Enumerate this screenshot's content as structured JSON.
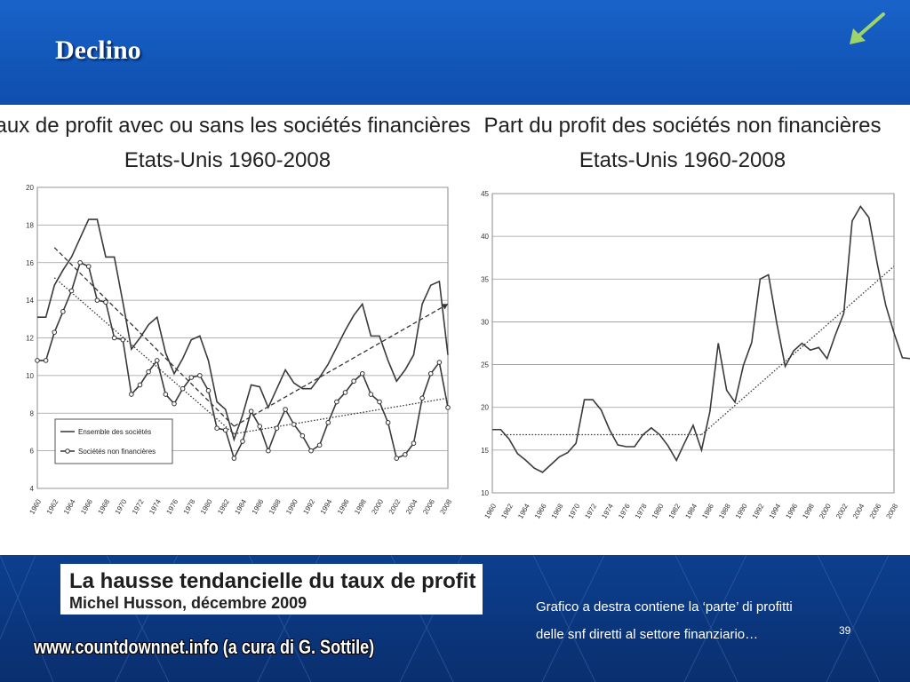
{
  "slide": {
    "title": "Declino",
    "nav_icon": "back-arrow-icon",
    "accent_color": "#9fd46a"
  },
  "citation": {
    "title": "La hausse tendancielle du taux de profit",
    "author": "Michel Husson, décembre 2009"
  },
  "note": {
    "line1": "Grafico a destra contiene la ‘parte’ di profitti",
    "line2": "delle snf diretti al settore finanziario…"
  },
  "slide_number": "39",
  "website": "www.countdownnet.info (a cura di G. Sottile)",
  "chart_data": [
    {
      "type": "line",
      "title": "Taux de profit avec ou sans les sociétés financières",
      "subtitle": "Etats-Unis 1960-2008",
      "ylim": [
        4,
        20
      ],
      "yticks": [
        "4",
        "6",
        "8",
        "10",
        "12",
        "14",
        "16",
        "18",
        "20"
      ],
      "xticks": [
        "1960",
        "1962",
        "1964",
        "1966",
        "1968",
        "1970",
        "1972",
        "1974",
        "1976",
        "1978",
        "1980",
        "1982",
        "1984",
        "1986",
        "1988",
        "1990",
        "1992",
        "1994",
        "1996",
        "1998",
        "2000",
        "2002",
        "2004",
        "2006",
        "2008"
      ],
      "legend": [
        "Ensemble des sociétés",
        "Sociétés non financières"
      ],
      "series": [
        {
          "name": "Ensemble des sociétés",
          "marker": "none",
          "values": [
            [
              1960,
              13.1
            ],
            [
              1961,
              13.1
            ],
            [
              1962,
              14.8
            ],
            [
              1963,
              15.6
            ],
            [
              1964,
              16.3
            ],
            [
              1965,
              17.3
            ],
            [
              1966,
              18.3
            ],
            [
              1967,
              18.3
            ],
            [
              1968,
              16.3
            ],
            [
              1969,
              16.3
            ],
            [
              1970,
              13.9
            ],
            [
              1971,
              11.4
            ],
            [
              1972,
              12.0
            ],
            [
              1973,
              12.7
            ],
            [
              1974,
              13.1
            ],
            [
              1975,
              11.2
            ],
            [
              1976,
              10.1
            ],
            [
              1977,
              10.9
            ],
            [
              1978,
              11.9
            ],
            [
              1979,
              12.1
            ],
            [
              1980,
              10.8
            ],
            [
              1981,
              8.6
            ],
            [
              1982,
              8.2
            ],
            [
              1983,
              6.6
            ],
            [
              1984,
              7.9
            ],
            [
              1985,
              9.5
            ],
            [
              1986,
              9.4
            ],
            [
              1987,
              8.3
            ],
            [
              1988,
              9.3
            ],
            [
              1989,
              10.3
            ],
            [
              1990,
              9.6
            ],
            [
              1991,
              9.3
            ],
            [
              1992,
              9.3
            ],
            [
              1993,
              9.9
            ],
            [
              1994,
              10.6
            ],
            [
              1995,
              11.5
            ],
            [
              1996,
              12.4
            ],
            [
              1997,
              13.2
            ],
            [
              1998,
              13.8
            ],
            [
              1999,
              12.1
            ],
            [
              2000,
              12.1
            ],
            [
              2001,
              10.8
            ],
            [
              2002,
              9.7
            ],
            [
              2003,
              10.3
            ],
            [
              2004,
              11.1
            ],
            [
              2005,
              13.8
            ],
            [
              2006,
              14.8
            ],
            [
              2007,
              15.0
            ],
            [
              2008,
              11.1
            ]
          ]
        },
        {
          "name": "Sociétés non financières",
          "marker": "circle",
          "values": [
            [
              1960,
              10.8
            ],
            [
              1961,
              10.8
            ],
            [
              1962,
              12.3
            ],
            [
              1963,
              13.4
            ],
            [
              1964,
              14.5
            ],
            [
              1965,
              16.0
            ],
            [
              1966,
              15.8
            ],
            [
              1967,
              14.0
            ],
            [
              1968,
              13.9
            ],
            [
              1969,
              12.0
            ],
            [
              1970,
              11.9
            ],
            [
              1971,
              9.0
            ],
            [
              1972,
              9.5
            ],
            [
              1973,
              10.2
            ],
            [
              1974,
              10.8
            ],
            [
              1975,
              9.0
            ],
            [
              1976,
              8.5
            ],
            [
              1977,
              9.3
            ],
            [
              1978,
              9.9
            ],
            [
              1979,
              10.0
            ],
            [
              1980,
              9.2
            ],
            [
              1981,
              7.2
            ],
            [
              1982,
              7.1
            ],
            [
              1983,
              5.6
            ],
            [
              1984,
              6.5
            ],
            [
              1985,
              8.1
            ],
            [
              1986,
              7.3
            ],
            [
              1987,
              6.0
            ],
            [
              1988,
              7.2
            ],
            [
              1989,
              8.2
            ],
            [
              1990,
              7.4
            ],
            [
              1991,
              6.8
            ],
            [
              1992,
              6.0
            ],
            [
              1993,
              6.3
            ],
            [
              1994,
              7.5
            ],
            [
              1995,
              8.6
            ],
            [
              1996,
              9.1
            ],
            [
              1997,
              9.7
            ],
            [
              1998,
              10.1
            ],
            [
              1999,
              9.0
            ],
            [
              2000,
              8.6
            ],
            [
              2001,
              7.5
            ],
            [
              2002,
              5.6
            ],
            [
              2003,
              5.8
            ],
            [
              2004,
              6.4
            ],
            [
              2005,
              8.8
            ],
            [
              2006,
              10.1
            ],
            [
              2007,
              10.7
            ],
            [
              2008,
              8.3
            ]
          ]
        }
      ],
      "trendlines": [
        {
          "style": "dashed",
          "points": [
            [
              1962,
              16.8
            ],
            [
              1983,
              7.3
            ]
          ]
        },
        {
          "style": "dashed-arrow",
          "points": [
            [
              1983,
              7.3
            ],
            [
              2008,
              13.8
            ]
          ]
        },
        {
          "style": "dotted",
          "points": [
            [
              1962,
              15.2
            ],
            [
              1983,
              6.9
            ]
          ]
        },
        {
          "style": "dotted",
          "points": [
            [
              1983,
              6.9
            ],
            [
              2008,
              8.8
            ]
          ]
        }
      ]
    },
    {
      "type": "line",
      "title": "Part du profit des sociétés non financières",
      "subtitle": "Etats-Unis 1960-2008",
      "ylim": [
        10,
        45
      ],
      "yticks": [
        "10",
        "15",
        "20",
        "25",
        "30",
        "35",
        "40",
        "45"
      ],
      "xticks": [
        "1960",
        "1962",
        "1964",
        "1966",
        "1968",
        "1970",
        "1972",
        "1974",
        "1976",
        "1978",
        "1980",
        "1982",
        "1984",
        "1986",
        "1988",
        "1990",
        "1992",
        "1994",
        "1996",
        "1998",
        "2000",
        "2002",
        "2004",
        "2006",
        "2008"
      ],
      "series": [
        {
          "name": "Part du profit",
          "marker": "none",
          "values": [
            [
              1960,
              17.4
            ],
            [
              1961,
              17.4
            ],
            [
              1962,
              16.3
            ],
            [
              1963,
              14.6
            ],
            [
              1964,
              13.8
            ],
            [
              1965,
              12.9
            ],
            [
              1966,
              12.4
            ],
            [
              1967,
              13.3
            ],
            [
              1968,
              14.2
            ],
            [
              1969,
              14.7
            ],
            [
              1970,
              15.8
            ],
            [
              1971,
              20.9
            ],
            [
              1972,
              20.9
            ],
            [
              1973,
              19.7
            ],
            [
              1974,
              17.4
            ],
            [
              1975,
              15.6
            ],
            [
              1976,
              15.4
            ],
            [
              1977,
              15.4
            ],
            [
              1978,
              16.8
            ],
            [
              1979,
              17.6
            ],
            [
              1980,
              16.8
            ],
            [
              1981,
              15.5
            ],
            [
              1982,
              13.8
            ],
            [
              1983,
              15.9
            ],
            [
              1984,
              17.9
            ],
            [
              1985,
              15.0
            ],
            [
              1986,
              19.5
            ],
            [
              1987,
              27.5
            ],
            [
              1988,
              22.0
            ],
            [
              1989,
              20.6
            ],
            [
              1990,
              24.9
            ],
            [
              1991,
              27.6
            ],
            [
              1992,
              35.0
            ],
            [
              1993,
              35.5
            ],
            [
              1994,
              29.8
            ],
            [
              1995,
              24.8
            ],
            [
              1996,
              26.6
            ],
            [
              1997,
              27.5
            ],
            [
              1998,
              26.7
            ],
            [
              1999,
              27.0
            ],
            [
              2000,
              25.7
            ],
            [
              2001,
              28.5
            ],
            [
              2002,
              31.0
            ],
            [
              2003,
              41.8
            ],
            [
              2004,
              43.5
            ],
            [
              2005,
              42.2
            ],
            [
              2006,
              36.8
            ],
            [
              2007,
              32.0
            ],
            [
              2008,
              28.7
            ],
            [
              2009,
              25.8
            ],
            [
              2010,
              25.7
            ]
          ]
        }
      ],
      "trendlines": [
        {
          "style": "dotted",
          "points": [
            [
              1961,
              16.8
            ],
            [
              1985,
              16.8
            ]
          ]
        },
        {
          "style": "dotted",
          "points": [
            [
              1985,
              16.8
            ],
            [
              2008,
              36.5
            ]
          ]
        }
      ]
    }
  ]
}
